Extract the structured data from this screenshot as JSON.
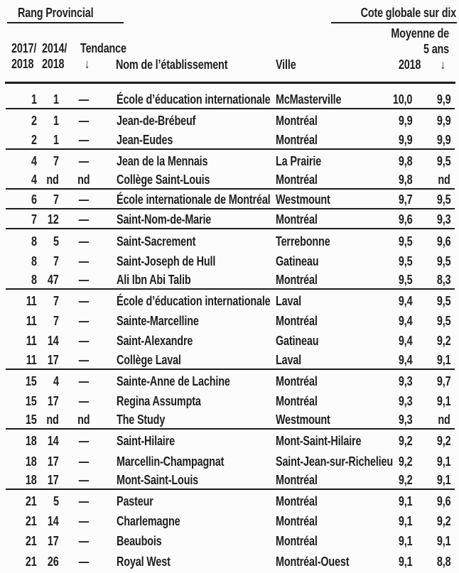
{
  "header": {
    "left_title": "Rang Provincial",
    "right_title": "Cote globale sur dix",
    "avg_line1": "Moyenne de",
    "avg_line2": "5 ans",
    "col_2017_l1": "2017/",
    "col_2017_l2": "2018",
    "col_2014_l1": "2014/",
    "col_2014_l2": "2018",
    "col_trend_label": "Tendance",
    "col_trend_arrow": "↓",
    "col_name": "Nom de l’établissement",
    "col_city": "Ville",
    "col_2018": "2018",
    "col_avg_arrow": "↓"
  },
  "colors": {
    "text": "#1f1f1f",
    "line": "#1c1c1c",
    "background": "#fcfcfc"
  },
  "table": {
    "rows": [
      {
        "r2018": "1",
        "r2014": "1",
        "trend": "—",
        "name": "École d’éducation internationale",
        "city": "McMasterville",
        "score2018": "10,0",
        "avg5": "9,9",
        "end": true
      },
      {
        "r2018": "2",
        "r2014": "1",
        "trend": "—",
        "name": "Jean-de-Brébeuf",
        "city": "Montréal",
        "score2018": "9,9",
        "avg5": "9,9",
        "end": false
      },
      {
        "r2018": "2",
        "r2014": "1",
        "trend": "—",
        "name": "Jean-Eudes",
        "city": "Montréal",
        "score2018": "9,9",
        "avg5": "9,9",
        "end": true
      },
      {
        "r2018": "4",
        "r2014": "7",
        "trend": "—",
        "name": "Jean de la Mennais",
        "city": "La Prairie",
        "score2018": "9,8",
        "avg5": "9,5",
        "end": false
      },
      {
        "r2018": "4",
        "r2014": "nd",
        "trend": "nd",
        "name": "Collège Saint-Louis",
        "city": "Montréal",
        "score2018": "9,8",
        "avg5": "nd",
        "end": true
      },
      {
        "r2018": "6",
        "r2014": "7",
        "trend": "—",
        "name": "École internationale de Montréal",
        "city": "Westmount",
        "score2018": "9,7",
        "avg5": "9,5",
        "end": true
      },
      {
        "r2018": "7",
        "r2014": "12",
        "trend": "—",
        "name": "Saint-Nom-de-Marie",
        "city": "Montréal",
        "score2018": "9,6",
        "avg5": "9,3",
        "end": true
      },
      {
        "r2018": "8",
        "r2014": "5",
        "trend": "—",
        "name": "Saint-Sacrement",
        "city": "Terrebonne",
        "score2018": "9,5",
        "avg5": "9,6",
        "end": false
      },
      {
        "r2018": "8",
        "r2014": "7",
        "trend": "—",
        "name": "Saint-Joseph de Hull",
        "city": "Gatineau",
        "score2018": "9,5",
        "avg5": "9,5",
        "end": false
      },
      {
        "r2018": "8",
        "r2014": "47",
        "trend": "—",
        "name": "Ali Ibn Abi Talib",
        "city": "Montréal",
        "score2018": "9,5",
        "avg5": "8,3",
        "end": true
      },
      {
        "r2018": "11",
        "r2014": "7",
        "trend": "—",
        "name": "École d’éducation internationale",
        "city": "Laval",
        "score2018": "9,4",
        "avg5": "9,5",
        "end": false
      },
      {
        "r2018": "11",
        "r2014": "7",
        "trend": "—",
        "name": "Sainte-Marcelline",
        "city": "Montréal",
        "score2018": "9,4",
        "avg5": "9,5",
        "end": false
      },
      {
        "r2018": "11",
        "r2014": "14",
        "trend": "—",
        "name": "Saint-Alexandre",
        "city": "Gatineau",
        "score2018": "9,4",
        "avg5": "9,2",
        "end": false
      },
      {
        "r2018": "11",
        "r2014": "17",
        "trend": "—",
        "name": "Collège Laval",
        "city": "Laval",
        "score2018": "9,4",
        "avg5": "9,1",
        "end": true
      },
      {
        "r2018": "15",
        "r2014": "4",
        "trend": "—",
        "name": "Sainte-Anne de Lachine",
        "city": "Montréal",
        "score2018": "9,3",
        "avg5": "9,7",
        "end": false
      },
      {
        "r2018": "15",
        "r2014": "17",
        "trend": "—",
        "name": "Regina Assumpta",
        "city": "Montréal",
        "score2018": "9,3",
        "avg5": "9,1",
        "end": false
      },
      {
        "r2018": "15",
        "r2014": "nd",
        "trend": "nd",
        "name": "The Study",
        "city": "Westmount",
        "score2018": "9,3",
        "avg5": "nd",
        "end": true
      },
      {
        "r2018": "18",
        "r2014": "14",
        "trend": "—",
        "name": "Saint-Hilaire",
        "city": "Mont-Saint-Hilaire",
        "score2018": "9,2",
        "avg5": "9,2",
        "end": false
      },
      {
        "r2018": "18",
        "r2014": "17",
        "trend": "—",
        "name": "Marcellin-Champagnat",
        "city": "Saint-Jean-sur-Richelieu",
        "score2018": "9,2",
        "avg5": "9,1",
        "end": false
      },
      {
        "r2018": "18",
        "r2014": "17",
        "trend": "—",
        "name": "Mont-Saint-Louis",
        "city": "Montréal",
        "score2018": "9,2",
        "avg5": "9,1",
        "end": true
      },
      {
        "r2018": "21",
        "r2014": "5",
        "trend": "—",
        "name": "Pasteur",
        "city": "Montréal",
        "score2018": "9,1",
        "avg5": "9,6",
        "end": false
      },
      {
        "r2018": "21",
        "r2014": "14",
        "trend": "—",
        "name": "Charlemagne",
        "city": "Montréal",
        "score2018": "9,1",
        "avg5": "9,2",
        "end": false
      },
      {
        "r2018": "21",
        "r2014": "17",
        "trend": "—",
        "name": "Beaubois",
        "city": "Montréal",
        "score2018": "9,1",
        "avg5": "9,1",
        "end": false
      },
      {
        "r2018": "21",
        "r2014": "26",
        "trend": "—",
        "name": "Royal West",
        "city": "Montréal-Ouest",
        "score2018": "9,1",
        "avg5": "8,8",
        "end": false
      }
    ]
  }
}
